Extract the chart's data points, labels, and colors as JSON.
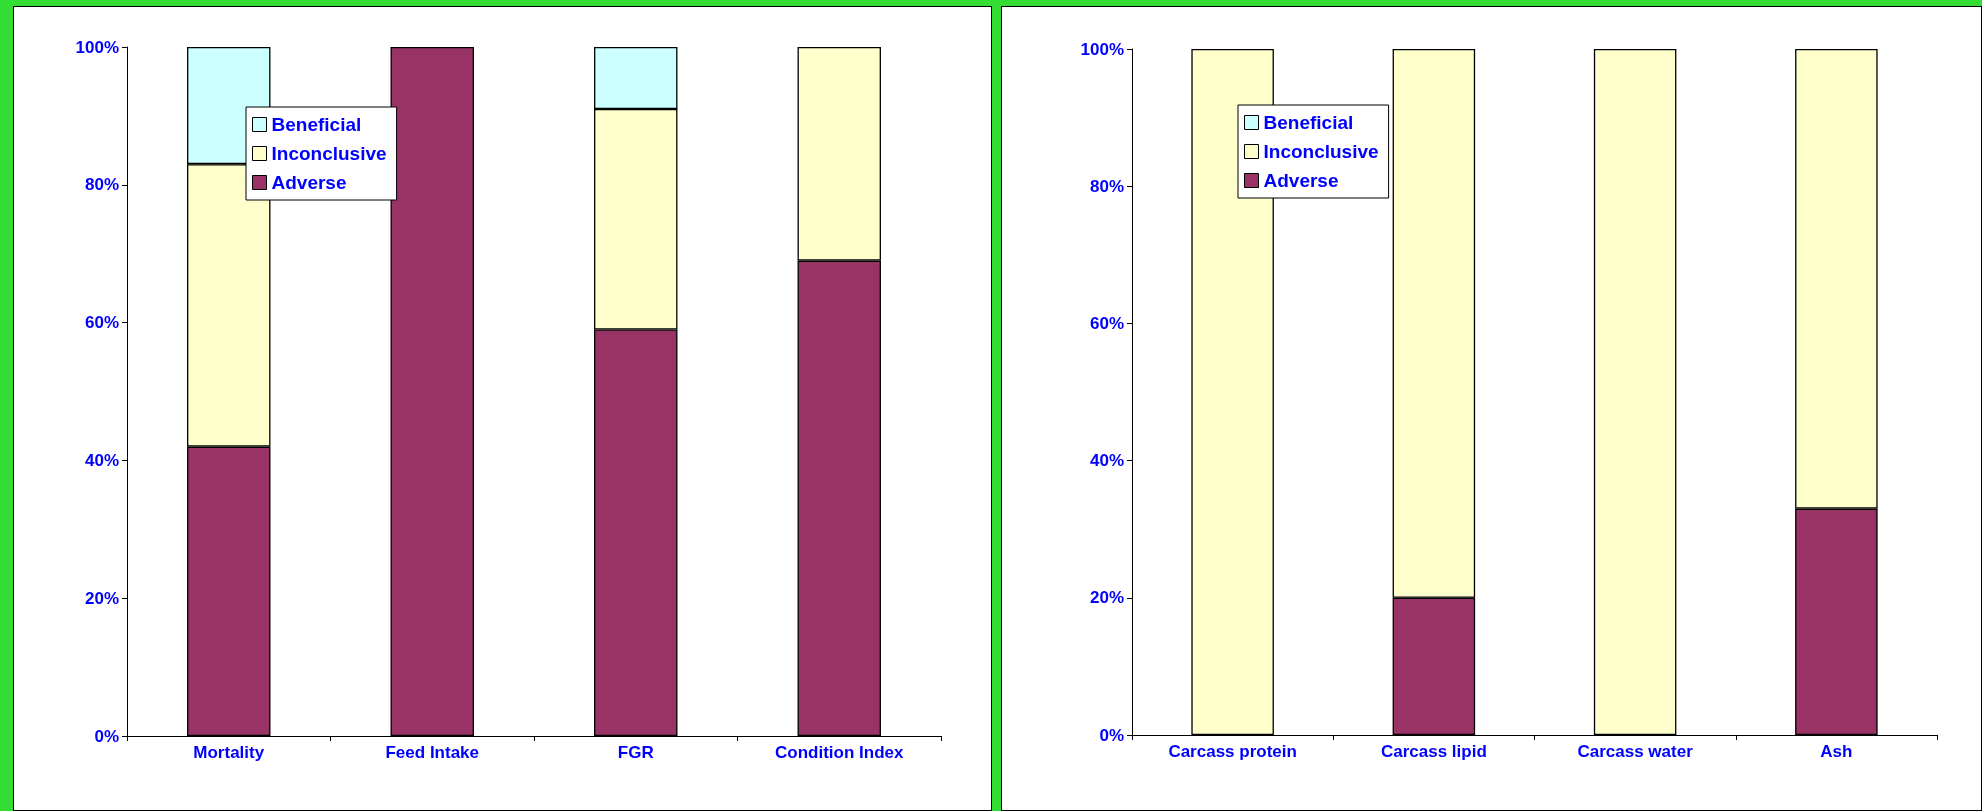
{
  "chart_data": [
    {
      "type": "bar",
      "stacked": true,
      "categories": [
        "Mortality",
        "Feed Intake",
        "FGR",
        "Condition Index"
      ],
      "series": [
        {
          "name": "Adverse",
          "color": "#993366",
          "values": [
            42,
            100,
            59,
            69
          ]
        },
        {
          "name": "Inconclusive",
          "color": "#ffffcc",
          "values": [
            41,
            0,
            32,
            31
          ]
        },
        {
          "name": "Beneficial",
          "color": "#ccffff",
          "values": [
            17,
            0,
            9,
            0
          ]
        }
      ],
      "ylim": [
        0,
        100
      ],
      "yticks": [
        {
          "value": 0,
          "label": "0%"
        },
        {
          "value": 20,
          "label": "20%"
        },
        {
          "value": 40,
          "label": "40%"
        },
        {
          "value": 60,
          "label": "60%"
        },
        {
          "value": 80,
          "label": "80%"
        },
        {
          "value": 100,
          "label": "100%"
        }
      ],
      "grid": false,
      "legend": "top left"
    },
    {
      "type": "bar",
      "stacked": true,
      "categories": [
        "Carcass protein",
        "Carcass lipid",
        "Carcass water",
        "Ash"
      ],
      "series": [
        {
          "name": "Adverse",
          "color": "#993366",
          "values": [
            0,
            20,
            0,
            33
          ]
        },
        {
          "name": "Inconclusive",
          "color": "#ffffcc",
          "values": [
            100,
            80,
            100,
            67
          ]
        },
        {
          "name": "Beneficial",
          "color": "#ccffff",
          "values": [
            0,
            0,
            0,
            0
          ]
        }
      ],
      "ylim": [
        0,
        100
      ],
      "yticks": [
        {
          "value": 0,
          "label": "0%"
        },
        {
          "value": 20,
          "label": "20%"
        },
        {
          "value": 40,
          "label": "40%"
        },
        {
          "value": 60,
          "label": "60%"
        },
        {
          "value": 80,
          "label": "80%"
        },
        {
          "value": 100,
          "label": "100%"
        }
      ],
      "grid": false,
      "legend": "top left"
    }
  ]
}
